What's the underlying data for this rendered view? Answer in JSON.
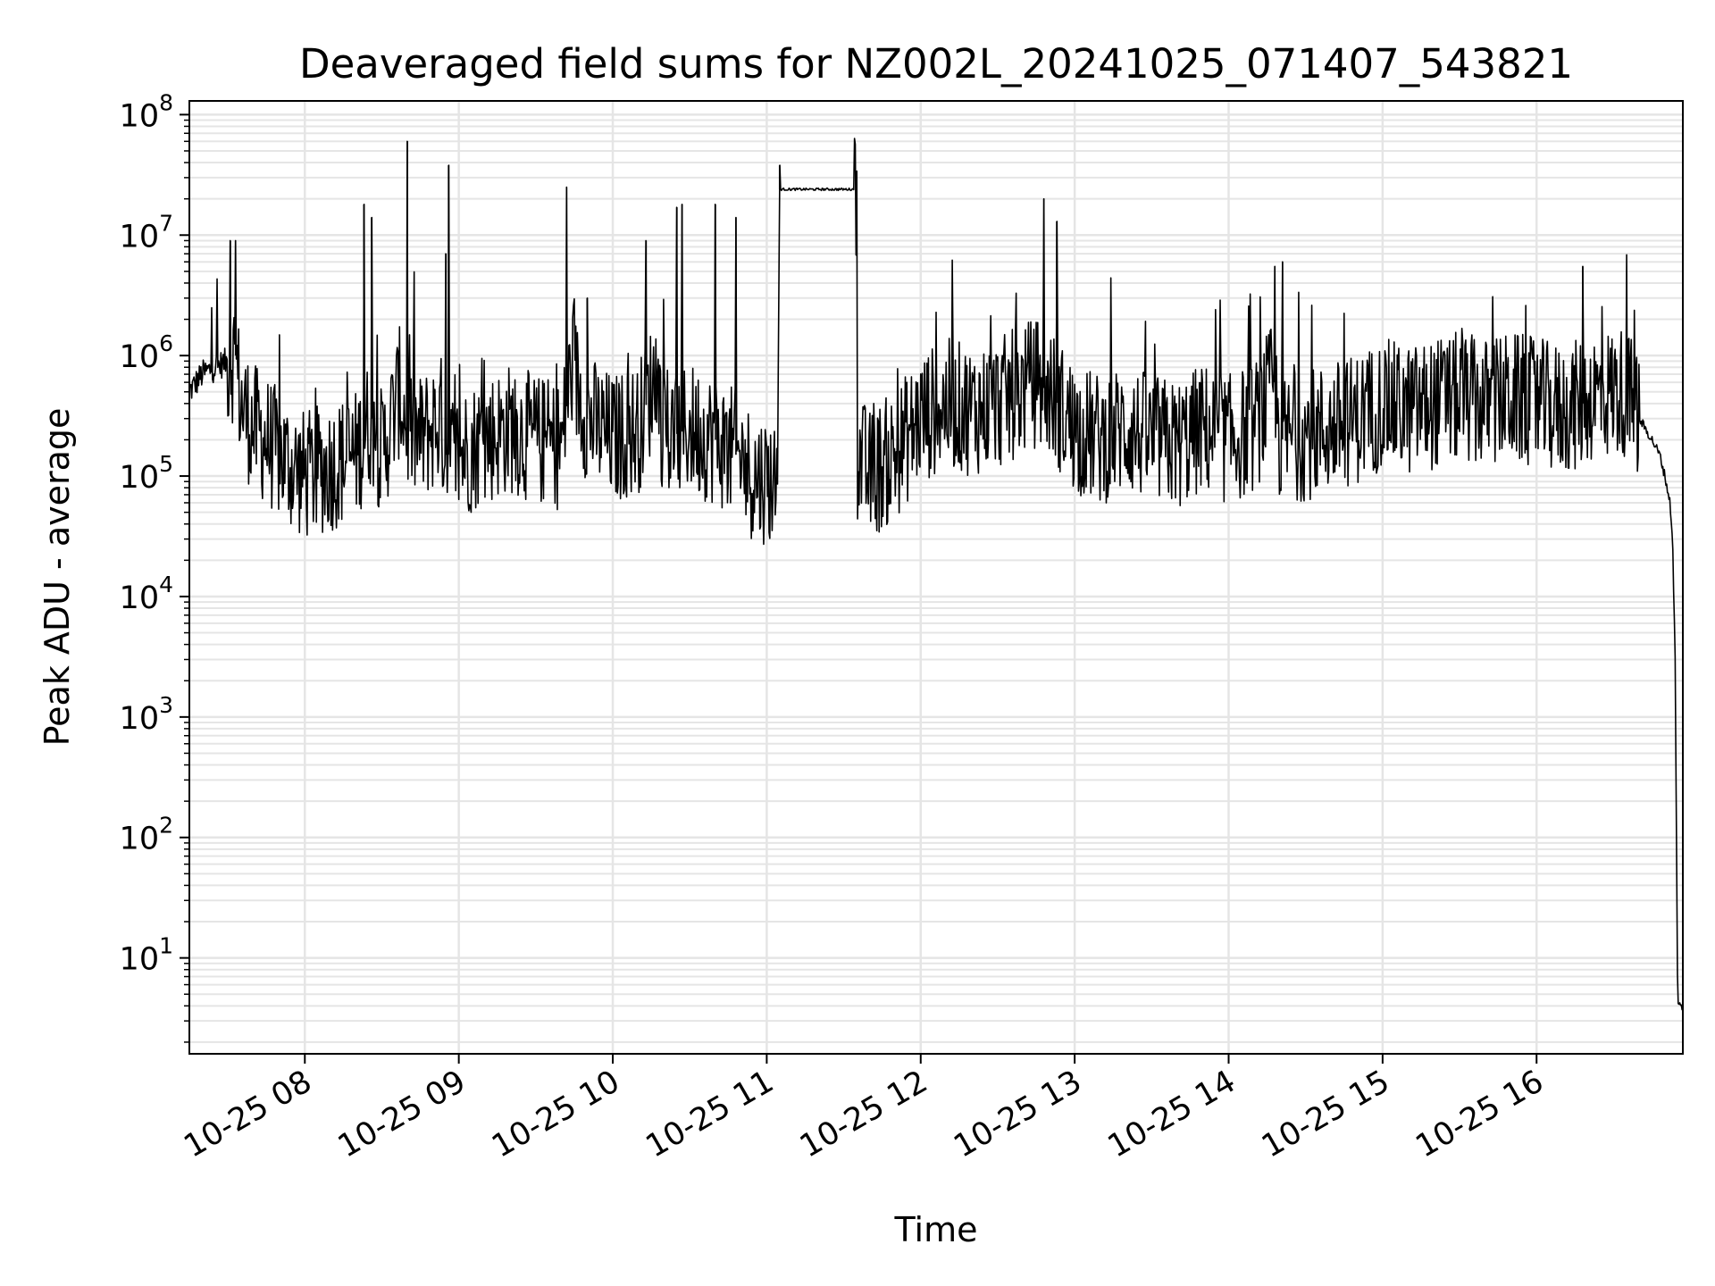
{
  "chart_data": {
    "type": "line",
    "title": "Deaveraged field sums for NZ002L_20241025_071407_543821",
    "xlabel": "Time",
    "ylabel": "Peak ADU - average",
    "yscale": "log",
    "ylim": [
      1.6,
      130000000
    ],
    "xlim": [
      "10-25 07:15",
      "10-25 16:57"
    ],
    "x_ticks": [
      {
        "label": "10-25 08",
        "value": "10-25 08:00"
      },
      {
        "label": "10-25 09",
        "value": "10-25 09:00"
      },
      {
        "label": "10-25 10",
        "value": "10-25 10:00"
      },
      {
        "label": "10-25 11",
        "value": "10-25 11:00"
      },
      {
        "label": "10-25 12",
        "value": "10-25 12:00"
      },
      {
        "label": "10-25 13",
        "value": "10-25 13:00"
      },
      {
        "label": "10-25 14",
        "value": "10-25 14:00"
      },
      {
        "label": "10-25 15",
        "value": "10-25 15:00"
      },
      {
        "label": "10-25 16",
        "value": "10-25 16:00"
      }
    ],
    "y_ticks": [
      {
        "base": "10",
        "exp": "1",
        "value": 10
      },
      {
        "base": "10",
        "exp": "2",
        "value": 100
      },
      {
        "base": "10",
        "exp": "3",
        "value": 1000
      },
      {
        "base": "10",
        "exp": "4",
        "value": 10000
      },
      {
        "base": "10",
        "exp": "5",
        "value": 100000
      },
      {
        "base": "10",
        "exp": "6",
        "value": 1000000
      },
      {
        "base": "10",
        "exp": "7",
        "value": 10000000
      },
      {
        "base": "10",
        "exp": "8",
        "value": 100000000
      }
    ],
    "grid": true,
    "line_color": "#000000",
    "grid_color": "#e5e5e5",
    "series": [
      {
        "x": [
          "10-25 07:15",
          "10-25 07:20",
          "10-25 07:25",
          "10-25 07:30",
          "10-25 07:33",
          "10-25 07:35",
          "10-25 07:40",
          "10-25 07:45",
          "10-25 07:50",
          "10-25 07:55",
          "10-25 08:00",
          "10-25 08:10",
          "10-25 08:20",
          "10-25 08:26",
          "10-25 08:30",
          "10-25 08:37",
          "10-25 08:40",
          "10-25 08:45",
          "10-25 08:53",
          "10-25 08:55",
          "10-25 09:00",
          "10-25 09:10",
          "10-25 09:20",
          "10-25 09:30",
          "10-25 09:40",
          "10-25 09:44",
          "10-25 09:50",
          "10-25 10:00",
          "10-25 10:10",
          "10-25 10:17",
          "10-25 10:20",
          "10-25 10:30",
          "10-25 10:40",
          "10-25 10:48",
          "10-25 10:55",
          "10-25 11:04",
          "10-25 11:05",
          "10-25 11:20",
          "10-25 11:35",
          "10-25 11:35",
          "10-25 11:40",
          "10-25 11:50",
          "10-25 12:00",
          "10-25 12:10",
          "10-25 12:20",
          "10-25 12:30",
          "10-25 12:45",
          "10-25 12:50",
          "10-25 13:00",
          "10-25 13:10",
          "10-25 13:20",
          "10-25 13:30",
          "10-25 13:40",
          "10-25 13:50",
          "10-25 14:00",
          "10-25 14:10",
          "10-25 14:18",
          "10-25 14:20",
          "10-25 14:30",
          "10-25 14:40",
          "10-25 14:50",
          "10-25 15:00",
          "10-25 15:10",
          "10-25 15:20",
          "10-25 15:30",
          "10-25 15:40",
          "10-25 15:50",
          "10-25 16:00",
          "10-25 16:10",
          "10-25 16:18",
          "10-25 16:20",
          "10-25 16:30",
          "10-25 16:35",
          "10-25 16:40",
          "10-25 16:45",
          "10-25 16:48",
          "10-25 16:50",
          "10-25 16:52",
          "10-25 16:53",
          "10-25 16:54",
          "10-25 16:55",
          "10-25 16:57"
        ],
        "y": [
          500000,
          700000,
          800000,
          900000,
          1000000,
          400000,
          250000,
          200000,
          150000,
          120000,
          100000,
          120000,
          150000,
          300000,
          150000,
          500000,
          250000,
          200000,
          300000,
          150000,
          150000,
          200000,
          250000,
          200000,
          180000,
          800000,
          300000,
          200000,
          250000,
          700000,
          200000,
          250000,
          200000,
          150000,
          100000,
          90000,
          24000000,
          24000000,
          24000000,
          150000,
          100000,
          150000,
          300000,
          400000,
          350000,
          400000,
          600000,
          500000,
          250000,
          200000,
          250000,
          200000,
          180000,
          250000,
          200000,
          250000,
          600000,
          200000,
          220000,
          250000,
          300000,
          400000,
          350000,
          400000,
          450000,
          400000,
          450000,
          400000,
          350000,
          400000,
          450000,
          500000,
          500000,
          300000,
          200000,
          150000,
          100000,
          60000,
          30000,
          3000,
          4,
          4
        ]
      }
    ],
    "spikes": [
      {
        "x": "10-25 07:31",
        "y": 9000000
      },
      {
        "x": "10-25 07:33",
        "y": 9000000
      },
      {
        "x": "10-25 08:23",
        "y": 18000000
      },
      {
        "x": "10-25 08:26",
        "y": 14000000
      },
      {
        "x": "10-25 08:40",
        "y": 60000000
      },
      {
        "x": "10-25 08:56",
        "y": 38000000
      },
      {
        "x": "10-25 08:55",
        "y": 7000000
      },
      {
        "x": "10-25 09:42",
        "y": 25000000
      },
      {
        "x": "10-25 09:50",
        "y": 3000000
      },
      {
        "x": "10-25 10:13",
        "y": 9000000
      },
      {
        "x": "10-25 10:25",
        "y": 17000000
      },
      {
        "x": "10-25 10:27",
        "y": 18000000
      },
      {
        "x": "10-25 10:40",
        "y": 18000000
      },
      {
        "x": "10-25 10:48",
        "y": 14000000
      },
      {
        "x": "10-25 11:05",
        "y": 38000000
      },
      {
        "x": "10-25 11:35",
        "y": 34000000
      },
      {
        "x": "10-25 12:48",
        "y": 20000000
      },
      {
        "x": "10-25 12:53",
        "y": 13000000
      },
      {
        "x": "10-25 14:18",
        "y": 5500000
      },
      {
        "x": "10-25 14:21",
        "y": 6000000
      },
      {
        "x": "10-25 16:18",
        "y": 5500000
      }
    ]
  }
}
